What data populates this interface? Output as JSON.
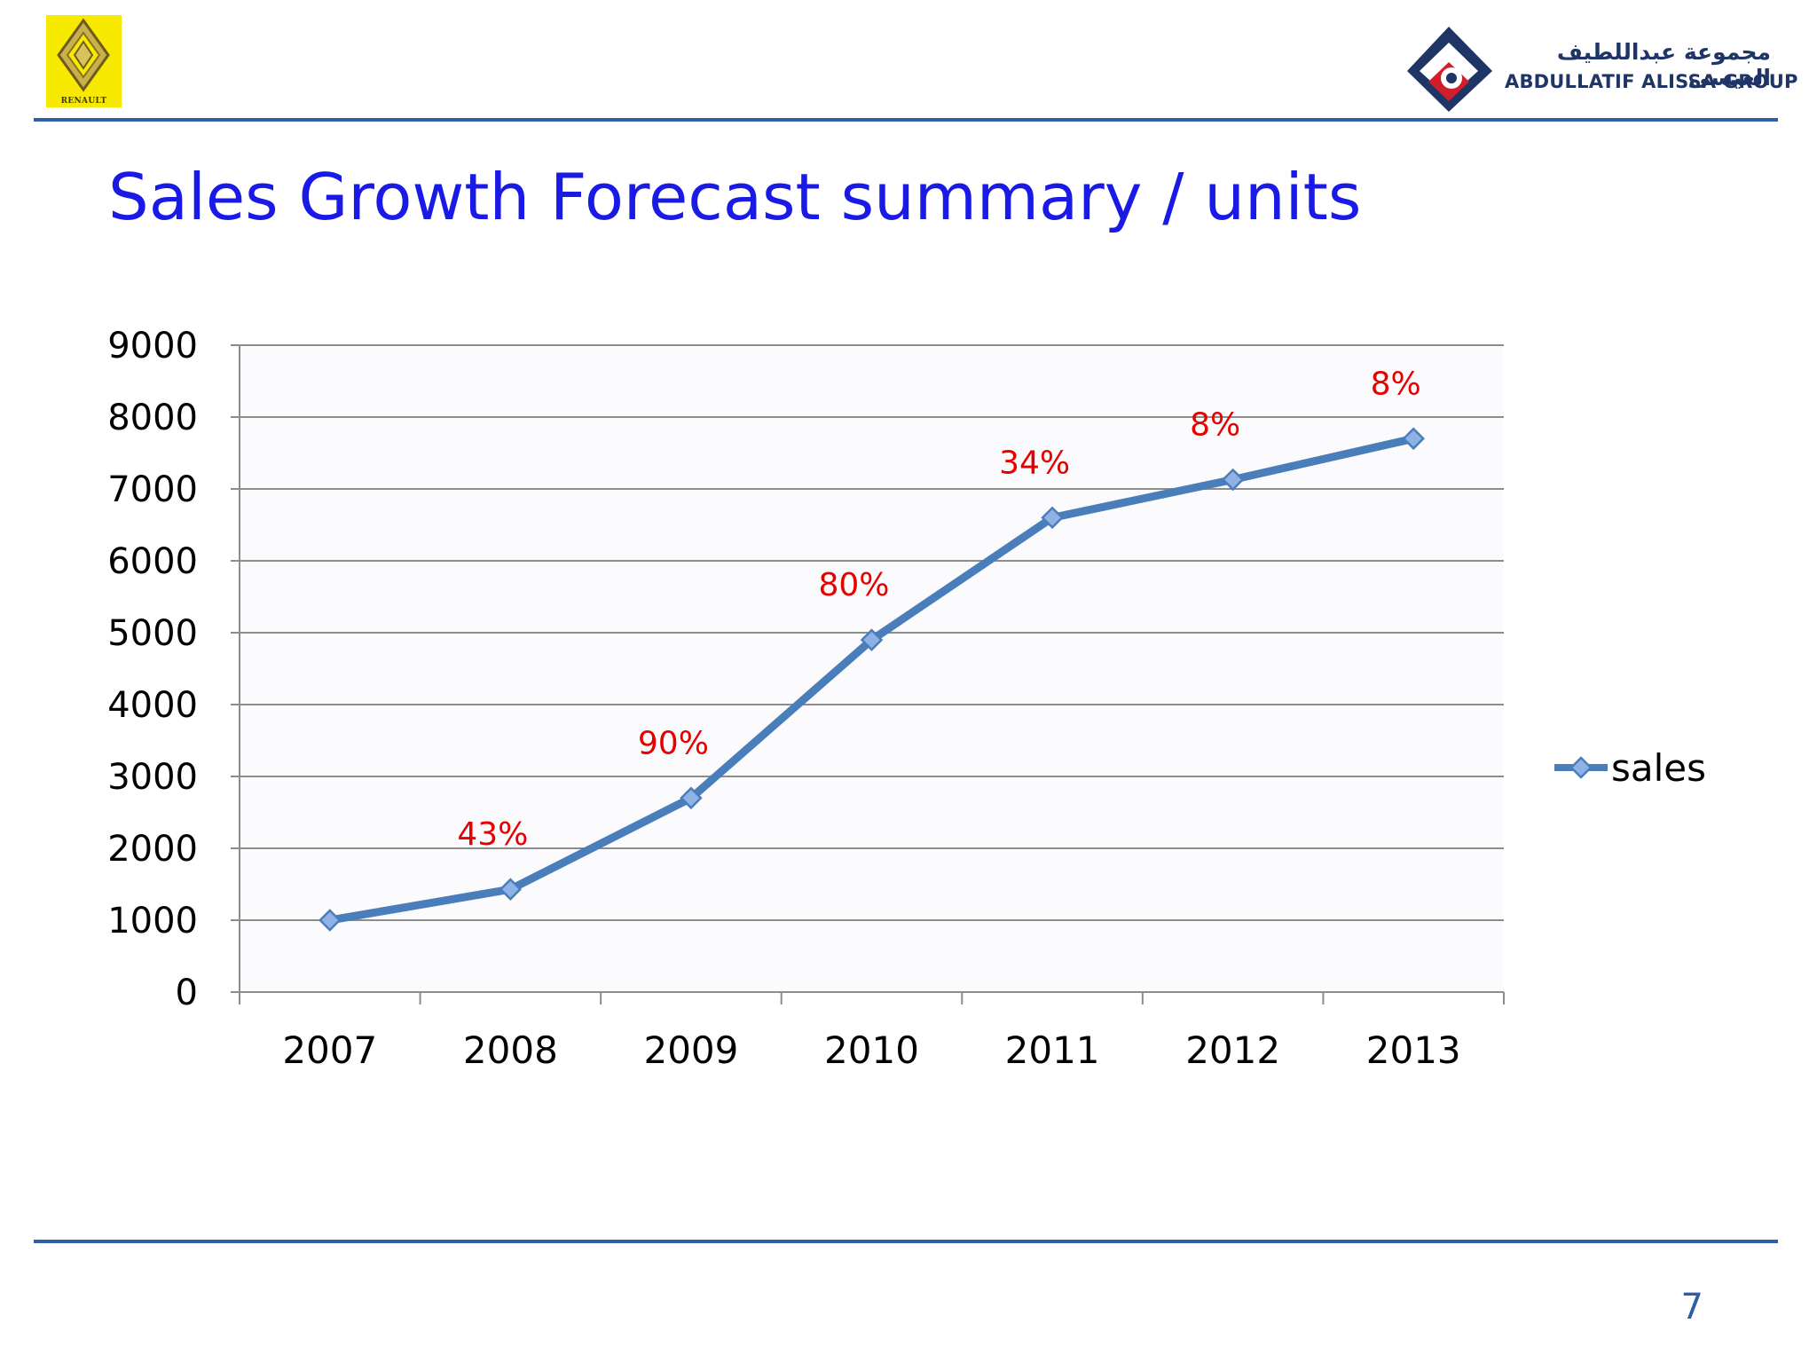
{
  "header": {
    "left_logo": {
      "name": "renault-logo",
      "text": "RENAULT"
    },
    "right_logo": {
      "name": "abdullatif-alissa-group-logo",
      "arabic_text": "مجموعة عبداللطيف العيسى",
      "latin_text": "ABDULLATIF ALISSA GROUP"
    }
  },
  "slide": {
    "title": "Sales Growth Forecast summary / units",
    "page_number": "7"
  },
  "colors": {
    "title": "#1a1ae6",
    "rule": "#2e5fa6",
    "line": "#4a7ebb",
    "marker": "#8fb2e6",
    "data_label": "#e60000",
    "gridline": "#8c8c8c"
  },
  "chart_data": {
    "type": "line",
    "categories": [
      "2007",
      "2008",
      "2009",
      "2010",
      "2011",
      "2012",
      "2013"
    ],
    "series": [
      {
        "name": "sales",
        "values": [
          1000,
          1430,
          2700,
          4900,
          6600,
          7130,
          7700
        ],
        "data_labels": [
          "",
          "43%",
          "90%",
          "80%",
          "34%",
          "8%",
          "8%"
        ]
      }
    ],
    "ylim": [
      0,
      9000
    ],
    "yticks": [
      "0",
      "1000",
      "2000",
      "3000",
      "4000",
      "5000",
      "6000",
      "7000",
      "8000",
      "9000"
    ],
    "grid": true,
    "legend": "right",
    "marker": "diamond"
  }
}
